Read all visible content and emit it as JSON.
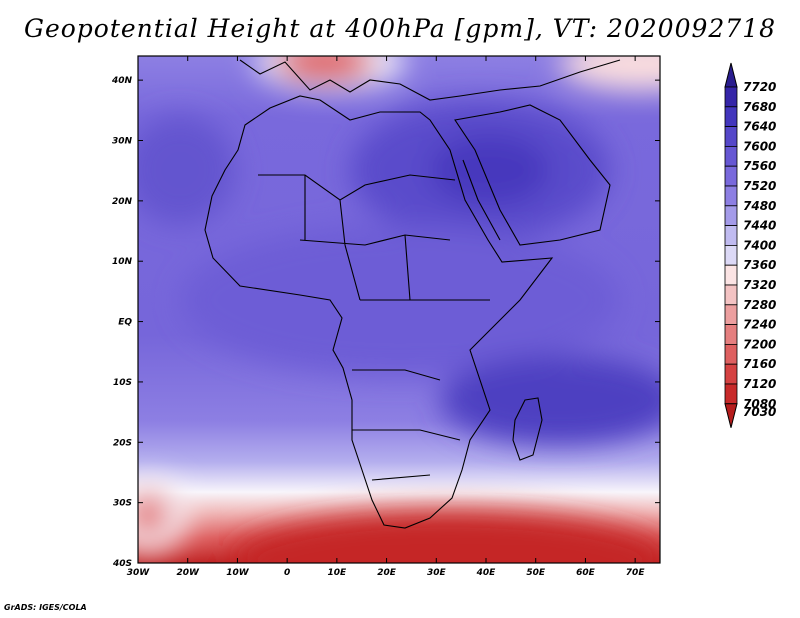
{
  "title": "Geopotential Height at 400hPa [gpm], VT: 2020092718",
  "credit": "GrADS: IGES/COLA",
  "map": {
    "lon_labels": [
      "30W",
      "20W",
      "10W",
      "0",
      "10E",
      "20E",
      "30E",
      "40E",
      "50E",
      "60E",
      "70E"
    ],
    "lat_labels": [
      "40N",
      "30N",
      "20N",
      "10N",
      "EQ",
      "10S",
      "20S",
      "30S",
      "40S"
    ],
    "lon_range": [
      -30,
      75
    ],
    "lat_range": [
      -40,
      44
    ]
  },
  "colorbar": {
    "labels": [
      "7720",
      "7680",
      "7640",
      "7600",
      "7560",
      "7520",
      "7480",
      "7440",
      "7400",
      "7360",
      "7320",
      "7280",
      "7240",
      "7200",
      "7160",
      "7120",
      "7080",
      "7030"
    ],
    "colors": [
      "#2a1d8f",
      "#3525a8",
      "#4336bd",
      "#5547c9",
      "#6657d3",
      "#7969dc",
      "#8d7fe3",
      "#a49be9",
      "#c0bbf0",
      "#dcd9f6",
      "#fbe4e4",
      "#f3c3c3",
      "#ec9f9f",
      "#e57f7f",
      "#de6060",
      "#d54242",
      "#c82a2a",
      "#b51c1c"
    ]
  },
  "chart_data": {
    "type": "heatmap",
    "title": "Geopotential Height at 400hPa [gpm], VT: 2020092718",
    "variable": "Geopotential Height",
    "units": "gpm",
    "level": "400hPa",
    "valid_time": "2020092718",
    "x_ticks": [
      "30W",
      "20W",
      "10W",
      "0",
      "10E",
      "20E",
      "30E",
      "40E",
      "50E",
      "60E",
      "70E"
    ],
    "y_ticks": [
      "40S",
      "30S",
      "20S",
      "10S",
      "EQ",
      "10N",
      "20N",
      "30N",
      "40N"
    ],
    "colorbar_levels": [
      7720,
      7680,
      7640,
      7600,
      7560,
      7520,
      7480,
      7440,
      7400,
      7360,
      7320,
      7280,
      7240,
      7200,
      7160,
      7120,
      7080,
      7030
    ],
    "features": [
      {
        "region": "Egypt / Arabian Peninsula",
        "value_approx": 7620
      },
      {
        "region": "Equatorial Africa",
        "value_approx": 7560
      },
      {
        "region": "Mozambique Channel",
        "value_approx": 7600
      },
      {
        "region": "South of South Africa",
        "value_approx": 7160
      },
      {
        "region": "Mediterranean / Italy",
        "value_approx": 7200
      },
      {
        "region": "South Atlantic ~32S 28W",
        "value_approx": 7280
      }
    ]
  }
}
